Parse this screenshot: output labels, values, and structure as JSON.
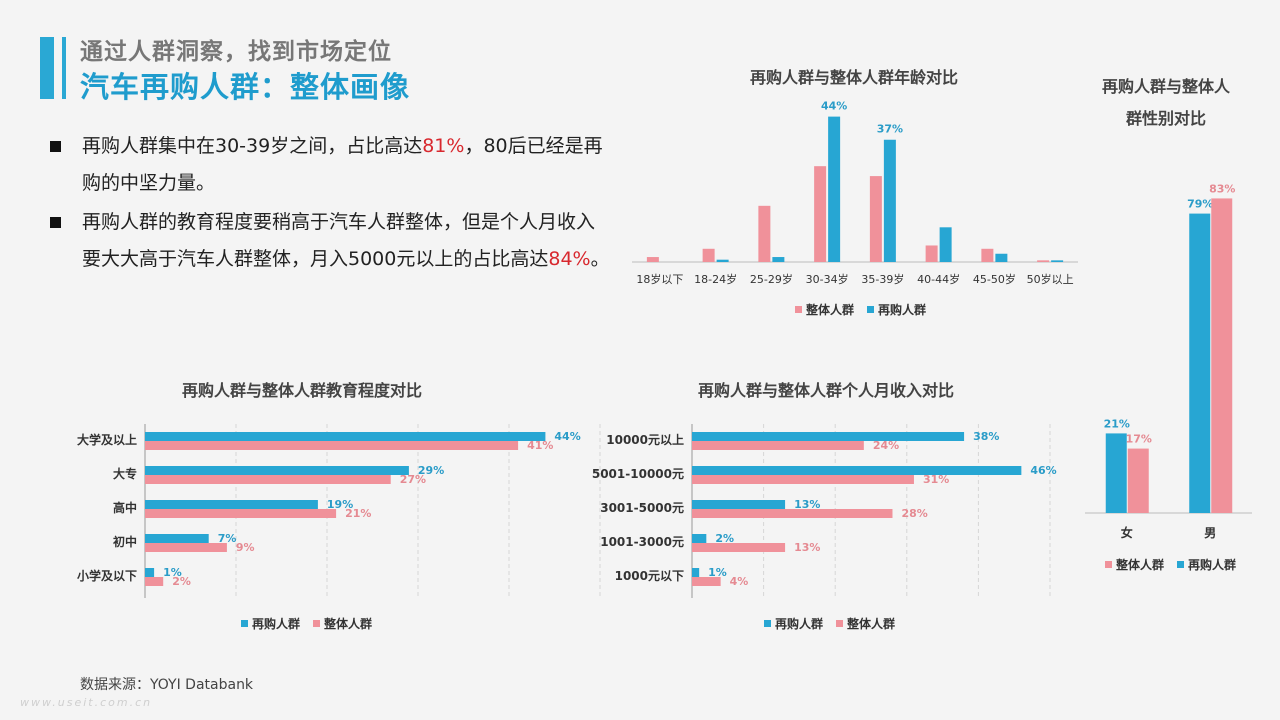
{
  "header": {
    "kicker": "通过人群洞察，找到市场定位",
    "title": "汽车再购人群：整体画像"
  },
  "bullets": [
    {
      "pre": "再购人群集中在30-39岁之间，占比高达",
      "hl": "81%",
      "post": "，80后已经是再购的中坚力量。"
    },
    {
      "pre": "再购人群的教育程度要稍高于汽车人群整体，但是个人月收入要大大高于汽车人群整体，月入5000元以上的占比高达",
      "hl": "84%",
      "post": "。"
    }
  ],
  "source": "数据来源：YOYI  Databank",
  "watermark": "www.useit.com.cn",
  "colors": {
    "overall": "#f0919a",
    "repurchase": "#27a6d3",
    "overall_label": "#e58a92",
    "repurchase_label": "#2a9cc8"
  },
  "chart_data": [
    {
      "id": "age",
      "type": "bar",
      "title": "再购人群与整体人群年龄对比",
      "categories": [
        "18岁以下",
        "18-24岁",
        "25-29岁",
        "30-34岁",
        "35-39岁",
        "40-44岁",
        "45-50岁",
        "50岁以上"
      ],
      "series": [
        {
          "name": "整体人群",
          "values": [
            1.5,
            4,
            17,
            29,
            26,
            5,
            4,
            0.5
          ]
        },
        {
          "name": "再购人群",
          "values": [
            0,
            0.7,
            1.5,
            44,
            37,
            10.5,
            2.5,
            0.5
          ]
        }
      ],
      "data_labels": {
        "3": "44%",
        "4": "37%"
      },
      "ylim": [
        0,
        46
      ],
      "legend": "bottom"
    },
    {
      "id": "gender",
      "type": "bar",
      "title": "再购人群与整体人群性别对比",
      "categories": [
        "女",
        "男"
      ],
      "series": [
        {
          "name": "再购人群",
          "values": [
            21,
            79
          ]
        },
        {
          "name": "整体人群",
          "values": [
            17,
            83
          ]
        }
      ],
      "value_labels": [
        "21%",
        "79%",
        "17%",
        "83%"
      ],
      "ylim": [
        0,
        100
      ],
      "legend": "bottom"
    },
    {
      "id": "education",
      "type": "bar",
      "orientation": "horizontal",
      "title": "再购人群与整体人群教育程度对比",
      "categories": [
        "大学及以上",
        "大专",
        "高中",
        "初中",
        "小学及以下"
      ],
      "series": [
        {
          "name": "再购人群",
          "values": [
            44,
            29,
            19,
            7,
            1
          ]
        },
        {
          "name": "整体人群",
          "values": [
            41,
            27,
            21,
            9,
            2
          ]
        }
      ],
      "value_labels": [
        [
          "44%",
          "29%",
          "19%",
          "7%",
          "1%"
        ],
        [
          "41%",
          "27%",
          "21%",
          "9%",
          "2%"
        ]
      ],
      "xlim": [
        0,
        50
      ],
      "grid": true,
      "legend": "bottom"
    },
    {
      "id": "income",
      "type": "bar",
      "orientation": "horizontal",
      "title": "再购人群与整体人群个人月收入对比",
      "categories": [
        "10000元以上",
        "5001-10000元",
        "3001-5000元",
        "1001-3000元",
        "1000元以下"
      ],
      "series": [
        {
          "name": "再购人群",
          "values": [
            38,
            46,
            13,
            2,
            1
          ]
        },
        {
          "name": "整体人群",
          "values": [
            24,
            31,
            28,
            13,
            4
          ]
        }
      ],
      "value_labels": [
        [
          "38%",
          "46%",
          "13%",
          "2%",
          "1%"
        ],
        [
          "24%",
          "31%",
          "28%",
          "13%",
          "4%"
        ]
      ],
      "xlim": [
        0,
        50
      ],
      "grid": true,
      "legend": "bottom"
    }
  ]
}
